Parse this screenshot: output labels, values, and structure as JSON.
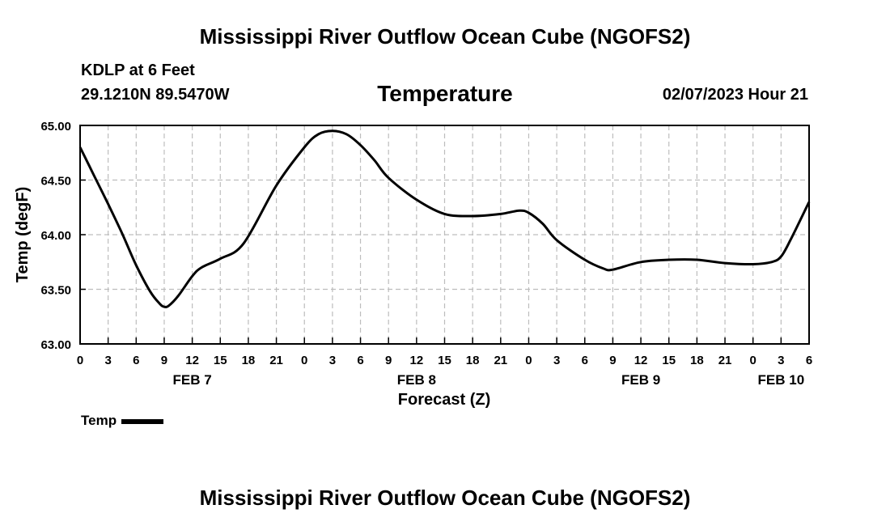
{
  "page": {
    "title_top": "Mississippi River Outflow Ocean Cube (NGOFS2)",
    "title_bottom": "Mississippi River Outflow Ocean Cube (NGOFS2)",
    "station": "KDLP at 6 Feet",
    "coords": "29.1210N  89.5470W",
    "datetime": "02/07/2023 Hour 21"
  },
  "chart_data": {
    "type": "line",
    "title": "Temperature",
    "xlabel": "Forecast (Z)",
    "ylabel": "Temp (degF)",
    "xlim": [
      0,
      78
    ],
    "ylim": [
      63.0,
      65.0
    ],
    "grid": true,
    "legend": [
      {
        "name": "Temp",
        "placement": "bottom-left"
      }
    ],
    "y_ticks": [
      63.0,
      63.5,
      64.0,
      64.5,
      65.0
    ],
    "y_tick_labels": [
      "63.00",
      "63.50",
      "64.00",
      "64.50",
      "65.00"
    ],
    "x_ticks": [
      0,
      3,
      6,
      9,
      12,
      15,
      18,
      21,
      24,
      27,
      30,
      33,
      36,
      39,
      42,
      45,
      48,
      51,
      54,
      57,
      60,
      63,
      66,
      69,
      72,
      75,
      78
    ],
    "x_tick_labels": [
      "0",
      "3",
      "6",
      "9",
      "12",
      "15",
      "18",
      "21",
      "0",
      "3",
      "6",
      "9",
      "12",
      "15",
      "18",
      "21",
      "0",
      "3",
      "6",
      "9",
      "12",
      "15",
      "18",
      "21",
      "0",
      "3",
      "6"
    ],
    "day_labels": [
      {
        "x": 12,
        "label": "FEB 7"
      },
      {
        "x": 36,
        "label": "FEB 8"
      },
      {
        "x": 60,
        "label": "FEB 9"
      },
      {
        "x": 75,
        "label": "FEB 10"
      }
    ],
    "series": [
      {
        "name": "Temp",
        "x": [
          0,
          1.5,
          3,
          4.5,
          6,
          7.5,
          8.5,
          9,
          9.5,
          10.5,
          12,
          13,
          15,
          17.5,
          21,
          24,
          25.5,
          27,
          28.5,
          30,
          31.5,
          33,
          36,
          39,
          42,
          45,
          47,
          48,
          49.5,
          51,
          54,
          56,
          57,
          60,
          63,
          66,
          69,
          72,
          74,
          75,
          76,
          78
        ],
        "values": [
          64.8,
          64.54,
          64.28,
          64.01,
          63.72,
          63.48,
          63.37,
          63.34,
          63.35,
          63.44,
          63.62,
          63.7,
          63.78,
          63.92,
          64.45,
          64.8,
          64.92,
          64.95,
          64.92,
          64.82,
          64.68,
          64.52,
          64.32,
          64.19,
          64.17,
          64.19,
          64.22,
          64.2,
          64.1,
          63.95,
          63.77,
          63.69,
          63.68,
          63.75,
          63.77,
          63.77,
          63.74,
          63.73,
          63.75,
          63.8,
          63.95,
          64.3
        ]
      }
    ]
  }
}
